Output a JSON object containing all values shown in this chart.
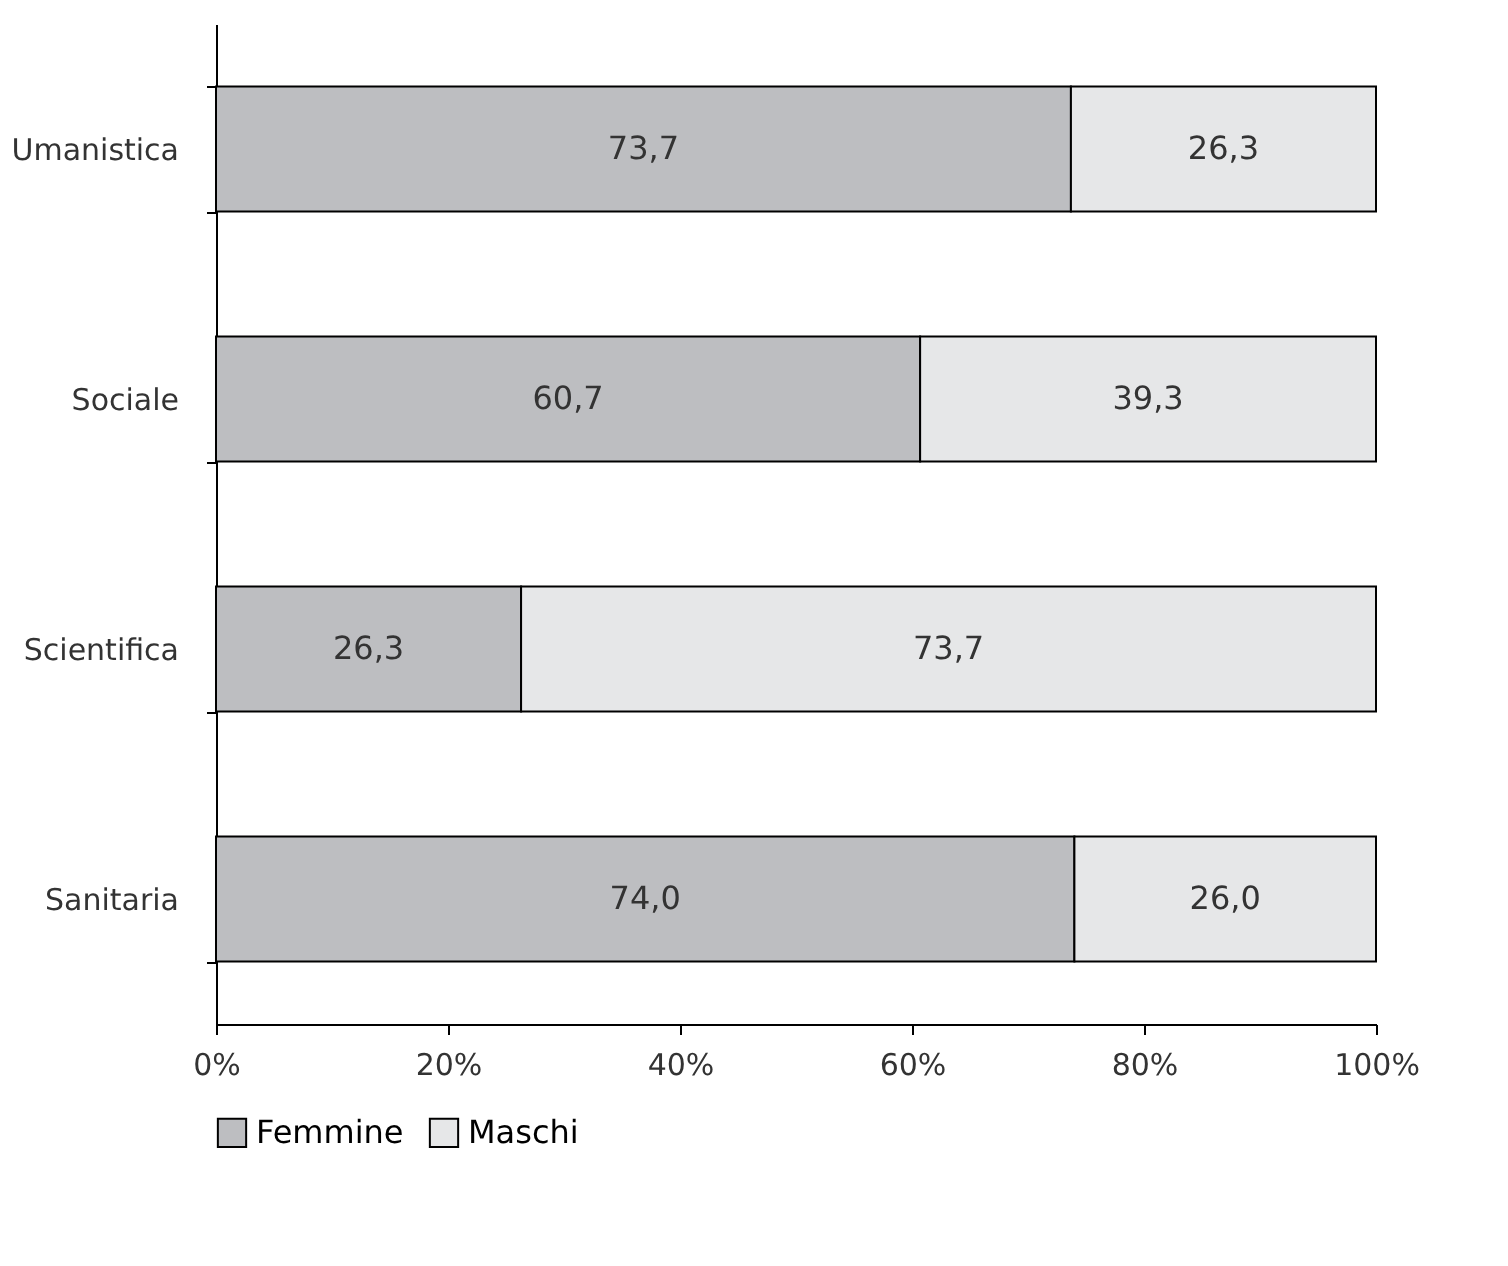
{
  "chart_data": {
    "type": "bar",
    "orientation": "horizontal",
    "stacked": true,
    "categories": [
      "Umanistica",
      "Sociale",
      "Scientifica",
      "Sanitaria"
    ],
    "series": [
      {
        "name": "Femmine",
        "color": "#bdbec1",
        "values": [
          73.7,
          60.7,
          26.3,
          74.0
        ],
        "value_labels": [
          "73,7",
          "60,7",
          "26,3",
          "74,0"
        ]
      },
      {
        "name": "Maschi",
        "color": "#e6e7e8",
        "values": [
          26.3,
          39.3,
          73.7,
          26.0
        ],
        "value_labels": [
          "26,3",
          "39,3",
          "73,7",
          "26,0"
        ]
      }
    ],
    "xlim": [
      0,
      100
    ],
    "xticks": [
      {
        "value": 0,
        "label": "0%"
      },
      {
        "value": 20,
        "label": "20%"
      },
      {
        "value": 40,
        "label": "40%"
      },
      {
        "value": 60,
        "label": "60%"
      },
      {
        "value": 80,
        "label": "80%"
      },
      {
        "value": 100,
        "label": "100%"
      }
    ],
    "grid": false,
    "legend": "bottom"
  }
}
